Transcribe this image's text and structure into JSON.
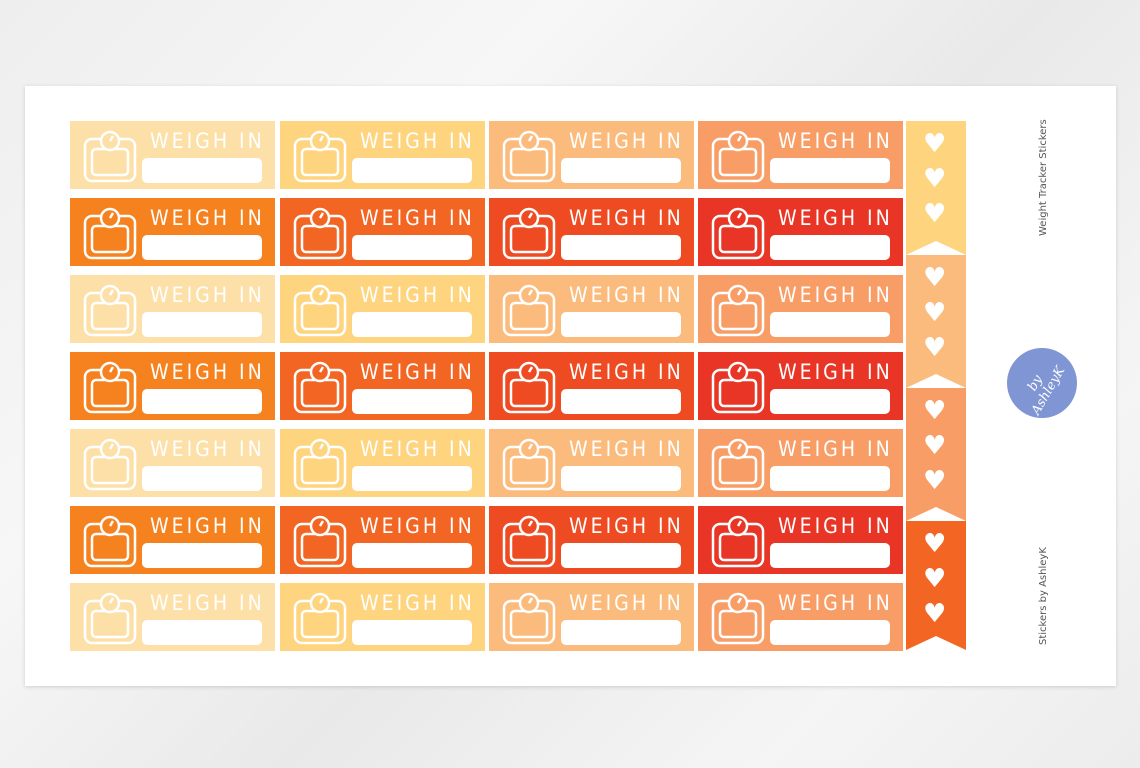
{
  "sticker_label": "WEIGH IN",
  "grid": {
    "rows": [
      "light",
      "dark",
      "light",
      "dark",
      "light",
      "dark",
      "light"
    ],
    "light_colors": [
      "#fde0a8",
      "#fed47e",
      "#fbbb7c",
      "#f99d66"
    ],
    "dark_colors": [
      "#f5821f",
      "#f26522",
      "#ee4b23",
      "#e83526"
    ]
  },
  "flags": {
    "colors": [
      "#fed47e",
      "#fbbb7c",
      "#f99d66",
      "#f26522"
    ],
    "hearts_per_flag": 3,
    "icon": "heart-icon"
  },
  "side": {
    "title": "Weight Tracker Stickers",
    "credit": "Stickers by AshleyK",
    "logo_text": "by AshleyK",
    "logo_color": "#7f95d4"
  }
}
